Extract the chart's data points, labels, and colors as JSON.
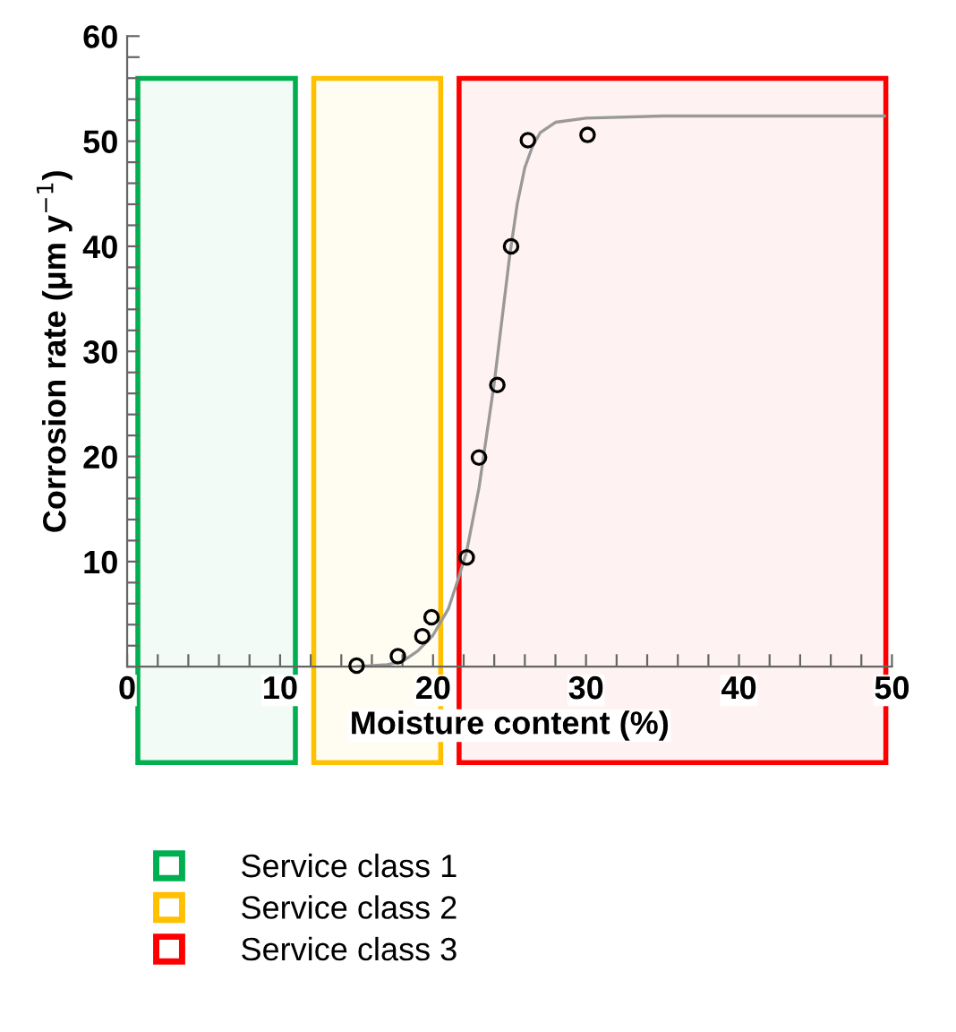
{
  "chart_data": {
    "type": "scatter",
    "xlabel": "Moisture content (%)",
    "ylabel": "Corrosion rate (μm y$^{−1}$)",
    "xlim": [
      0,
      50
    ],
    "ylim": [
      0,
      60
    ],
    "xticks": [
      {
        "value": 0,
        "label": "0"
      },
      {
        "value": 2,
        "label": null
      },
      {
        "value": 4,
        "label": null
      },
      {
        "value": 6,
        "label": null
      },
      {
        "value": 8,
        "label": null
      },
      10,
      {
        "value": 12,
        "label": null
      },
      {
        "value": 14,
        "label": null
      },
      {
        "value": 16,
        "label": null
      },
      {
        "value": 18,
        "label": null
      },
      20,
      {
        "value": 22,
        "label": null
      },
      {
        "value": 24,
        "label": null
      },
      {
        "value": 26,
        "label": null
      },
      {
        "value": 28,
        "label": null
      },
      30,
      {
        "value": 32,
        "label": null
      },
      {
        "value": 34,
        "label": null
      },
      {
        "value": 36,
        "label": null
      },
      {
        "value": 38,
        "label": null
      },
      40,
      {
        "value": 42,
        "label": null
      },
      {
        "value": 44,
        "label": null
      },
      {
        "value": 46,
        "label": null
      },
      {
        "value": 48,
        "label": null
      },
      50
    ],
    "yticks": [
      {
        "value": 0,
        "label": null
      },
      {
        "value": 2,
        "label": null
      },
      {
        "value": 4,
        "label": null
      },
      {
        "value": 6,
        "label": null
      },
      {
        "value": 8,
        "label": null
      },
      10,
      {
        "value": 12,
        "label": null
      },
      {
        "value": 14,
        "label": null
      },
      {
        "value": 16,
        "label": null
      },
      {
        "value": 18,
        "label": null
      },
      20,
      {
        "value": 22,
        "label": null
      },
      {
        "value": 24,
        "label": null
      },
      {
        "value": 26,
        "label": null
      },
      {
        "value": 28,
        "label": null
      },
      30,
      {
        "value": 32,
        "label": null
      },
      {
        "value": 34,
        "label": null
      },
      {
        "value": 36,
        "label": null
      },
      {
        "value": 38,
        "label": null
      },
      40,
      {
        "value": 42,
        "label": null
      },
      {
        "value": 44,
        "label": null
      },
      {
        "value": 46,
        "label": null
      },
      {
        "value": 48,
        "label": null
      },
      50,
      {
        "value": 52,
        "label": null
      },
      {
        "value": 54,
        "label": null
      },
      {
        "value": 56,
        "label": null
      },
      {
        "value": 58,
        "label": null
      },
      60
    ],
    "series": [
      {
        "type": "line",
        "color": "#999999",
        "x": [
          15,
          17,
          18,
          19,
          20,
          21,
          21.7,
          22.2,
          23,
          24,
          25,
          25.5,
          26,
          26.5,
          27,
          28,
          30,
          35,
          40,
          49.5
        ],
        "values": [
          0,
          0.2,
          0.5,
          1.5,
          3,
          5.5,
          8.6,
          11,
          17,
          27,
          39,
          44,
          47.5,
          49.5,
          50.8,
          51.8,
          52.2,
          52.4,
          52.4,
          52.4
        ],
        "marker": "none",
        "line_style": "solid"
      },
      {
        "color": "#000000",
        "x": [
          15.0,
          17.7,
          19.3,
          19.9,
          22.2,
          23.0,
          24.2,
          25.1,
          26.2,
          30.1
        ],
        "values": [
          0.1,
          1.0,
          2.9,
          4.7,
          10.4,
          19.9,
          26.8,
          40.0,
          50.1,
          50.6
        ],
        "marker": "circle"
      }
    ],
    "bands": [
      {
        "axis": "x",
        "from": 0.7,
        "to": 11.0,
        "label": "Service class 1",
        "color": "#00b050"
      },
      {
        "axis": "x",
        "from": 12.2,
        "to": 20.5,
        "label": "Service class 2",
        "color": "#ffc000"
      },
      {
        "axis": "x",
        "from": 21.7,
        "to": 49.6,
        "label": "Service class 3",
        "color": "#ff0000"
      }
    ],
    "grid": false,
    "legend": "bottom"
  }
}
